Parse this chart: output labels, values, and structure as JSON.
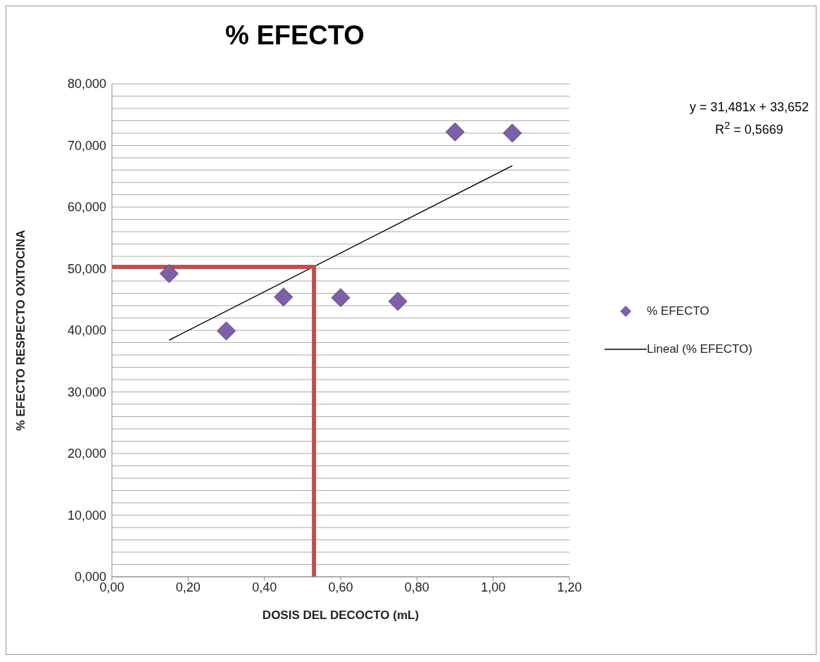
{
  "chart_data": {
    "type": "scatter",
    "title": "% EFECTO",
    "xlabel": "DOSIS  DEL DECOCTO  (mL)",
    "ylabel": "% EFECTO  RESPECTO  OXITOCINA",
    "annotations": [
      "y = 31,481x + 33,652",
      "R$^{2}$ = 0,5669"
    ],
    "series": [
      {
        "name": "% EFECTO",
        "marker": "diamond",
        "color": "#7f5fa8",
        "x": [
          0.15,
          0.3,
          0.45,
          0.6,
          0.75,
          0.9,
          1.05
        ],
        "values": [
          49.2,
          39.9,
          45.4,
          45.3,
          44.7,
          72.2,
          72.0
        ]
      },
      {
        "name": "Lineal (% EFECTO)",
        "type": "line",
        "marker": "none",
        "color": "#000000",
        "x": [
          0.15,
          1.05
        ],
        "values": [
          38.4,
          66.7
        ]
      },
      {
        "type": "line",
        "marker": "none",
        "color": "#c0504d",
        "x": [
          0,
          0.53,
          0.53
        ],
        "values": [
          50.3,
          50.3,
          0
        ]
      }
    ],
    "xlim": [
      0,
      1.2
    ],
    "xticks": [
      {
        "value": 0,
        "label": "0,00"
      },
      {
        "value": 0.2,
        "label": "0,20"
      },
      {
        "value": 0.4,
        "label": "0,40"
      },
      {
        "value": 0.6,
        "label": "0,60"
      },
      {
        "value": 0.8,
        "label": "0,80"
      },
      {
        "value": 1,
        "label": "1,00"
      },
      {
        "value": 1.2,
        "label": "1,20"
      }
    ],
    "ylim": [
      0,
      80
    ],
    "yticks": [
      {
        "value": 0,
        "label": "0,000"
      },
      {
        "value": 2,
        "label": null
      },
      {
        "value": 4,
        "label": null
      },
      {
        "value": 6,
        "label": null
      },
      {
        "value": 8,
        "label": null
      },
      {
        "value": 10,
        "label": "10,000"
      },
      {
        "value": 12,
        "label": null
      },
      {
        "value": 14,
        "label": null
      },
      {
        "value": 16,
        "label": null
      },
      {
        "value": 18,
        "label": null
      },
      {
        "value": 20,
        "label": "20,000"
      },
      {
        "value": 22,
        "label": null
      },
      {
        "value": 24,
        "label": null
      },
      {
        "value": 26,
        "label": null
      },
      {
        "value": 28,
        "label": null
      },
      {
        "value": 30,
        "label": "30,000"
      },
      {
        "value": 32,
        "label": null
      },
      {
        "value": 34,
        "label": null
      },
      {
        "value": 36,
        "label": null
      },
      {
        "value": 38,
        "label": null
      },
      {
        "value": 40,
        "label": "40,000"
      },
      {
        "value": 42,
        "label": null
      },
      {
        "value": 44,
        "label": null
      },
      {
        "value": 46,
        "label": null
      },
      {
        "value": 48,
        "label": null
      },
      {
        "value": 50,
        "label": "50,000"
      },
      {
        "value": 52,
        "label": null
      },
      {
        "value": 54,
        "label": null
      },
      {
        "value": 56,
        "label": null
      },
      {
        "value": 58,
        "label": null
      },
      {
        "value": 60,
        "label": "60,000"
      },
      {
        "value": 62,
        "label": null
      },
      {
        "value": 64,
        "label": null
      },
      {
        "value": 66,
        "label": null
      },
      {
        "value": 68,
        "label": null
      },
      {
        "value": 70,
        "label": "70,000"
      },
      {
        "value": 72,
        "label": null
      },
      {
        "value": 74,
        "label": null
      },
      {
        "value": 76,
        "label": null
      },
      {
        "value": 78,
        "label": null
      },
      {
        "value": 80,
        "label": "80,000"
      }
    ],
    "grid": "y",
    "legend": "right"
  }
}
